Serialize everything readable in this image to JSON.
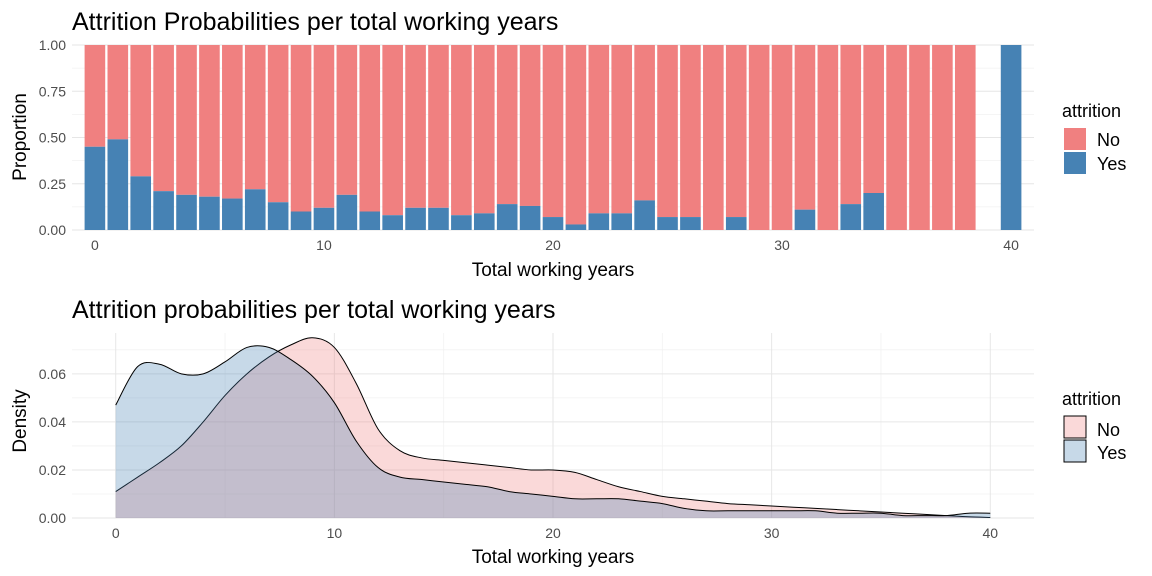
{
  "chart_data": [
    {
      "type": "bar",
      "stacked": true,
      "title": "Attrition Probabilities per total working years",
      "xlabel": "Total working years",
      "ylabel": "Proportion",
      "xlim": [
        -1,
        41
      ],
      "ylim": [
        0,
        1
      ],
      "x_ticks": [
        "0",
        "10",
        "20",
        "30",
        "40"
      ],
      "y_ticks": [
        "0.00",
        "0.25",
        "0.50",
        "0.75",
        "1.00"
      ],
      "grid": true,
      "legend": {
        "title": "attrition",
        "position": "right",
        "labels": [
          "No",
          "Yes"
        ]
      },
      "colors": {
        "No": "#F08080",
        "Yes": "#4682B4"
      },
      "x": [
        0,
        1,
        2,
        3,
        4,
        5,
        6,
        7,
        8,
        9,
        10,
        11,
        12,
        13,
        14,
        15,
        16,
        17,
        18,
        19,
        20,
        21,
        22,
        23,
        24,
        25,
        26,
        27,
        28,
        29,
        30,
        31,
        32,
        33,
        34,
        35,
        36,
        37,
        38,
        40
      ],
      "series": [
        {
          "name": "Yes",
          "values": [
            0.45,
            0.49,
            0.29,
            0.21,
            0.19,
            0.18,
            0.17,
            0.22,
            0.15,
            0.1,
            0.12,
            0.19,
            0.1,
            0.08,
            0.12,
            0.12,
            0.08,
            0.09,
            0.14,
            0.13,
            0.07,
            0.03,
            0.09,
            0.09,
            0.16,
            0.07,
            0.07,
            0,
            0.07,
            0,
            0,
            0.11,
            0,
            0.14,
            0.2,
            0,
            0,
            0,
            0,
            1.0
          ]
        },
        {
          "name": "No",
          "values": [
            0.55,
            0.51,
            0.71,
            0.79,
            0.81,
            0.82,
            0.83,
            0.78,
            0.85,
            0.9,
            0.88,
            0.81,
            0.9,
            0.92,
            0.88,
            0.88,
            0.92,
            0.91,
            0.86,
            0.87,
            0.93,
            0.97,
            0.91,
            0.91,
            0.84,
            0.93,
            0.93,
            1,
            0.93,
            1,
            1,
            0.89,
            1,
            0.86,
            0.8,
            1,
            1,
            1,
            1,
            0
          ]
        }
      ]
    },
    {
      "type": "area",
      "title": "Attrition probabilities per total working years",
      "xlabel": "Total working years",
      "ylabel": "Density",
      "xlim": [
        -2,
        42
      ],
      "ylim": [
        0,
        0.077
      ],
      "x_ticks": [
        "0",
        "10",
        "20",
        "30",
        "40"
      ],
      "y_ticks": [
        "0.00",
        "0.02",
        "0.04",
        "0.06"
      ],
      "grid": true,
      "legend": {
        "title": "attrition",
        "position": "right",
        "labels": [
          "No",
          "Yes"
        ]
      },
      "colors": {
        "No": "#F08080",
        "Yes": "#4682B4"
      },
      "x": [
        0,
        1,
        2,
        3,
        4,
        5,
        6,
        7,
        8,
        9,
        10,
        11,
        12,
        13,
        14,
        15,
        16,
        17,
        18,
        19,
        20,
        21,
        22,
        23,
        24,
        25,
        26,
        27,
        28,
        29,
        30,
        31,
        32,
        33,
        34,
        35,
        36,
        37,
        38,
        39,
        40
      ],
      "series": [
        {
          "name": "No",
          "values": [
            0.011,
            0.017,
            0.023,
            0.03,
            0.04,
            0.051,
            0.06,
            0.067,
            0.072,
            0.075,
            0.071,
            0.056,
            0.037,
            0.028,
            0.025,
            0.024,
            0.023,
            0.022,
            0.021,
            0.02,
            0.02,
            0.019,
            0.016,
            0.013,
            0.011,
            0.009,
            0.008,
            0.007,
            0.006,
            0.0055,
            0.005,
            0.0045,
            0.004,
            0.0035,
            0.003,
            0.0025,
            0.002,
            0.0015,
            0.001,
            0.0005,
            0.0002
          ]
        },
        {
          "name": "Yes",
          "values": [
            0.047,
            0.063,
            0.064,
            0.06,
            0.06,
            0.065,
            0.071,
            0.071,
            0.066,
            0.059,
            0.048,
            0.032,
            0.021,
            0.017,
            0.016,
            0.015,
            0.014,
            0.013,
            0.011,
            0.01,
            0.009,
            0.008,
            0.008,
            0.008,
            0.007,
            0.006,
            0.004,
            0.003,
            0.003,
            0.003,
            0.003,
            0.003,
            0.003,
            0.002,
            0.002,
            0.002,
            0.001,
            0.001,
            0.001,
            0.002,
            0.002
          ]
        }
      ]
    }
  ]
}
